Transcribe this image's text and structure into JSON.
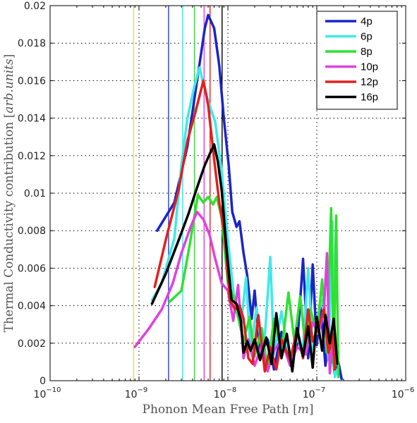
{
  "chart_data": {
    "type": "line",
    "title": "",
    "xlabel_parts": [
      "Phonon Mean Free Path ",
      "[",
      "m",
      "]"
    ],
    "ylabel_parts": [
      "Thermal Conductivity contribution ",
      "[",
      "arb.units",
      "]"
    ],
    "x_scale": "log",
    "xlim": [
      1e-10,
      1e-06
    ],
    "ylim": [
      0,
      0.02
    ],
    "x_ticks": [
      {
        "value": 1e-10,
        "base": "10",
        "exp": "−10"
      },
      {
        "value": 1e-09,
        "base": "10",
        "exp": "−9"
      },
      {
        "value": 1e-08,
        "base": "10",
        "exp": "−8"
      },
      {
        "value": 1e-07,
        "base": "10",
        "exp": "−7"
      },
      {
        "value": 1e-06,
        "base": "10",
        "exp": "−6"
      }
    ],
    "y_ticks": [
      {
        "value": 0,
        "label": "0"
      },
      {
        "value": 0.002,
        "label": "0.002"
      },
      {
        "value": 0.004,
        "label": "0.004"
      },
      {
        "value": 0.006,
        "label": "0.006"
      },
      {
        "value": 0.008,
        "label": "0.008"
      },
      {
        "value": 0.01,
        "label": "0.01"
      },
      {
        "value": 0.012,
        "label": "0.012"
      },
      {
        "value": 0.014,
        "label": "0.014"
      },
      {
        "value": 0.016,
        "label": "0.016"
      },
      {
        "value": 0.018,
        "label": "0.018"
      },
      {
        "value": 0.02,
        "label": "0.02"
      }
    ],
    "grid": "dotted",
    "legend_position": "top-right",
    "vertical_lines": [
      {
        "x": 8.7e-10,
        "color": "#f0e020"
      },
      {
        "x": 2.15e-09,
        "color": "#2a3fd0"
      },
      {
        "x": 3.1e-09,
        "color": "#40e0e0"
      },
      {
        "x": 4.2e-09,
        "color": "#40d040"
      },
      {
        "x": 5.4e-09,
        "color": "#e040e0"
      },
      {
        "x": 6.3e-09,
        "color": "#e02020"
      },
      {
        "x": 8.6e-09,
        "color": "#000000"
      }
    ],
    "series": [
      {
        "name": "4p",
        "color": "#1a24c8",
        "points": [
          [
            1.6e-09,
            0.008
          ],
          [
            2.5e-09,
            0.0095
          ],
          [
            3.5e-09,
            0.0125
          ],
          [
            4.5e-09,
            0.016
          ],
          [
            5.5e-09,
            0.0188
          ],
          [
            6e-09,
            0.0195
          ],
          [
            7e-09,
            0.0188
          ],
          [
            8e-09,
            0.0168
          ],
          [
            9e-09,
            0.014
          ],
          [
            1.02e-08,
            0.0115
          ],
          [
            1.12e-08,
            0.009
          ],
          [
            1.25e-08,
            0.0082
          ],
          [
            1.35e-08,
            0.0085
          ],
          [
            1.5e-08,
            0.0068
          ],
          [
            1.65e-08,
            0.0056
          ],
          [
            1.85e-08,
            0.0033
          ],
          [
            2e-08,
            0.0048
          ],
          [
            2.3e-08,
            0.0013
          ],
          [
            2.8e-08,
            0.0022
          ],
          [
            3.3e-08,
            0.0006
          ],
          [
            4e-08,
            0.0026
          ],
          [
            5e-08,
            0.0009
          ],
          [
            6e-08,
            0.0018
          ],
          [
            7e-08,
            0.0065
          ],
          [
            8e-08,
            0.0012
          ],
          [
            9e-08,
            0.0062
          ],
          [
            1e-07,
            0.0019
          ],
          [
            1.1e-07,
            0.0041
          ],
          [
            1.25e-07,
            0.0008
          ],
          [
            1.4e-07,
            0.0025
          ],
          [
            1.6e-07,
            0.0003
          ],
          [
            1.75e-07,
            0.001
          ],
          [
            1.9e-07,
            0.0001
          ]
        ]
      },
      {
        "name": "6p",
        "color": "#40e8e8",
        "points": [
          [
            1.4e-09,
            0.0043
          ],
          [
            1.8e-09,
            0.0052
          ],
          [
            2.5e-09,
            0.0076
          ],
          [
            3e-09,
            0.0115
          ],
          [
            3.5e-09,
            0.014
          ],
          [
            4.2e-09,
            0.0157
          ],
          [
            4.8e-09,
            0.0167
          ],
          [
            5.3e-09,
            0.0158
          ],
          [
            6.2e-09,
            0.0147
          ],
          [
            7.2e-09,
            0.0138
          ],
          [
            8.5e-09,
            0.0112
          ],
          [
            1e-08,
            0.0075
          ],
          [
            1.2e-08,
            0.004
          ],
          [
            1.4e-08,
            0.0029
          ],
          [
            1.6e-08,
            0.0055
          ],
          [
            1.8e-08,
            0.0015
          ],
          [
            2.1e-08,
            0.0039
          ],
          [
            2.5e-08,
            0.0011
          ],
          [
            3e-08,
            0.0066
          ],
          [
            3.3e-08,
            0.0014
          ],
          [
            4e-08,
            0.0037
          ],
          [
            5e-08,
            0.0009
          ],
          [
            6e-08,
            0.0022
          ],
          [
            7e-08,
            0.0018
          ],
          [
            8e-08,
            0.006
          ],
          [
            9e-08,
            0.0017
          ],
          [
            1.05e-07,
            0.0037
          ],
          [
            1.2e-07,
            0.0045
          ],
          [
            1.35e-07,
            0.0011
          ],
          [
            1.5e-07,
            0.0085
          ],
          [
            1.6e-07,
            0.0002
          ],
          [
            1.7e-07,
            0.0006
          ]
        ]
      },
      {
        "name": "8p",
        "color": "#30e030",
        "points": [
          [
            2.2e-09,
            0.0042
          ],
          [
            3e-09,
            0.0048
          ],
          [
            3.7e-09,
            0.0072
          ],
          [
            4.6e-09,
            0.0099
          ],
          [
            5.3e-09,
            0.0095
          ],
          [
            6e-09,
            0.0098
          ],
          [
            6.8e-09,
            0.0094
          ],
          [
            7.5e-09,
            0.0098
          ],
          [
            8.5e-09,
            0.0087
          ],
          [
            1e-08,
            0.0052
          ],
          [
            1.15e-08,
            0.0045
          ],
          [
            1.3e-08,
            0.0034
          ],
          [
            1.5e-08,
            0.0021
          ],
          [
            1.75e-08,
            0.0034
          ],
          [
            2e-08,
            0.0013
          ],
          [
            2.4e-08,
            0.0028
          ],
          [
            2.8e-08,
            0.0006
          ],
          [
            3.3e-08,
            0.0033
          ],
          [
            4e-08,
            0.0015
          ],
          [
            4.8e-08,
            0.0047
          ],
          [
            5.6e-08,
            0.0021
          ],
          [
            6.5e-08,
            0.0045
          ],
          [
            7.5e-08,
            0.0017
          ],
          [
            8.5e-08,
            0.0038
          ],
          [
            1e-07,
            0.0025
          ],
          [
            1.15e-07,
            0.0054
          ],
          [
            1.3e-07,
            0.0015
          ],
          [
            1.45e-07,
            0.0092
          ],
          [
            1.55e-07,
            0.0007
          ],
          [
            1.65e-07,
            0.0088
          ],
          [
            1.75e-07,
            0.0002
          ]
        ]
      },
      {
        "name": "10p",
        "color": "#e040e0",
        "points": [
          [
            9e-10,
            0.0018
          ],
          [
            1.3e-09,
            0.0028
          ],
          [
            1.8e-09,
            0.0038
          ],
          [
            2.4e-09,
            0.0052
          ],
          [
            3e-09,
            0.0068
          ],
          [
            3.8e-09,
            0.0082
          ],
          [
            4.5e-09,
            0.009
          ],
          [
            5.3e-09,
            0.0086
          ],
          [
            6.2e-09,
            0.0078
          ],
          [
            7.2e-09,
            0.0065
          ],
          [
            8.5e-09,
            0.0052
          ],
          [
            1e-08,
            0.0048
          ],
          [
            1.15e-08,
            0.0032
          ],
          [
            1.3e-08,
            0.0051
          ],
          [
            1.5e-08,
            0.0012
          ],
          [
            1.7e-08,
            0.0022
          ],
          [
            2e-08,
            0.0008
          ],
          [
            2.4e-08,
            0.0019
          ],
          [
            2.8e-08,
            0.0005
          ],
          [
            3.3e-08,
            0.0016
          ],
          [
            4e-08,
            0.0022
          ],
          [
            5e-08,
            0.0008
          ],
          [
            6e-08,
            0.0018
          ],
          [
            7.5e-08,
            0.0014
          ],
          [
            9e-08,
            0.0031
          ],
          [
            1.05e-07,
            0.0026
          ],
          [
            1.2e-07,
            0.0037
          ],
          [
            1.3e-07,
            0.0068
          ],
          [
            1.4e-07,
            0.0004
          ],
          [
            1.5e-07,
            0.0019
          ]
        ]
      },
      {
        "name": "12p",
        "color": "#e02020",
        "points": [
          [
            1.5e-09,
            0.005
          ],
          [
            2e-09,
            0.0075
          ],
          [
            2.8e-09,
            0.0102
          ],
          [
            3.5e-09,
            0.0128
          ],
          [
            4.3e-09,
            0.0143
          ],
          [
            5.3e-09,
            0.016
          ],
          [
            6e-09,
            0.0147
          ],
          [
            7e-09,
            0.0118
          ],
          [
            8e-09,
            0.0095
          ],
          [
            9.2e-09,
            0.0078
          ],
          [
            1.05e-08,
            0.0043
          ],
          [
            1.2e-08,
            0.0038
          ],
          [
            1.35e-08,
            0.004
          ],
          [
            1.5e-08,
            0.0033
          ],
          [
            1.7e-08,
            0.0012
          ],
          [
            1.9e-08,
            0.0009
          ],
          [
            2.2e-08,
            0.0035
          ],
          [
            2.6e-08,
            0.0005
          ],
          [
            3e-08,
            0.0018
          ],
          [
            3.5e-08,
            0.0006
          ],
          [
            4e-08,
            0.0022
          ],
          [
            5e-08,
            0.0011
          ],
          [
            6e-08,
            0.0027
          ],
          [
            7e-08,
            0.0012
          ],
          [
            8e-08,
            0.0038
          ],
          [
            9e-08,
            0.0021
          ],
          [
            1.05e-07,
            0.0029
          ],
          [
            1.2e-07,
            0.0038
          ],
          [
            1.35e-07,
            0.0015
          ],
          [
            1.5e-07,
            0.0025
          ],
          [
            1.6e-07,
            0.0006
          ]
        ]
      },
      {
        "name": "16p",
        "color": "#000000",
        "points": [
          [
            1.4e-09,
            0.0041
          ],
          [
            2e-09,
            0.0057
          ],
          [
            2.8e-09,
            0.0075
          ],
          [
            3.6e-09,
            0.0089
          ],
          [
            4.5e-09,
            0.0103
          ],
          [
            5.5e-09,
            0.0115
          ],
          [
            6.4e-09,
            0.0122
          ],
          [
            7e-09,
            0.0126
          ],
          [
            7.7e-09,
            0.0117
          ],
          [
            8.5e-09,
            0.0102
          ],
          [
            9.5e-09,
            0.0074
          ],
          [
            1.1e-08,
            0.0043
          ],
          [
            1.25e-08,
            0.0041
          ],
          [
            1.4e-08,
            0.0032
          ],
          [
            1.5e-08,
            0.0015
          ],
          [
            1.65e-08,
            0.0021
          ],
          [
            1.8e-08,
            0.0016
          ],
          [
            2e-08,
            0.0022
          ],
          [
            2.3e-08,
            0.0011
          ],
          [
            2.7e-08,
            0.0023
          ],
          [
            3.1e-08,
            0.0009
          ],
          [
            3.5e-08,
            0.0036
          ],
          [
            4e-08,
            0.0012
          ],
          [
            4.6e-08,
            0.0025
          ],
          [
            5.3e-08,
            0.0005
          ],
          [
            6e-08,
            0.0028
          ],
          [
            7e-08,
            0.0013
          ],
          [
            8e-08,
            0.0029
          ],
          [
            9e-08,
            0.0007
          ],
          [
            1e-07,
            0.0034
          ],
          [
            1.15e-07,
            0.0016
          ],
          [
            1.25e-07,
            0.0035
          ],
          [
            1.4e-07,
            0.002
          ],
          [
            1.55e-07,
            0.0033
          ],
          [
            1.7e-07,
            0.0009
          ]
        ]
      }
    ]
  }
}
